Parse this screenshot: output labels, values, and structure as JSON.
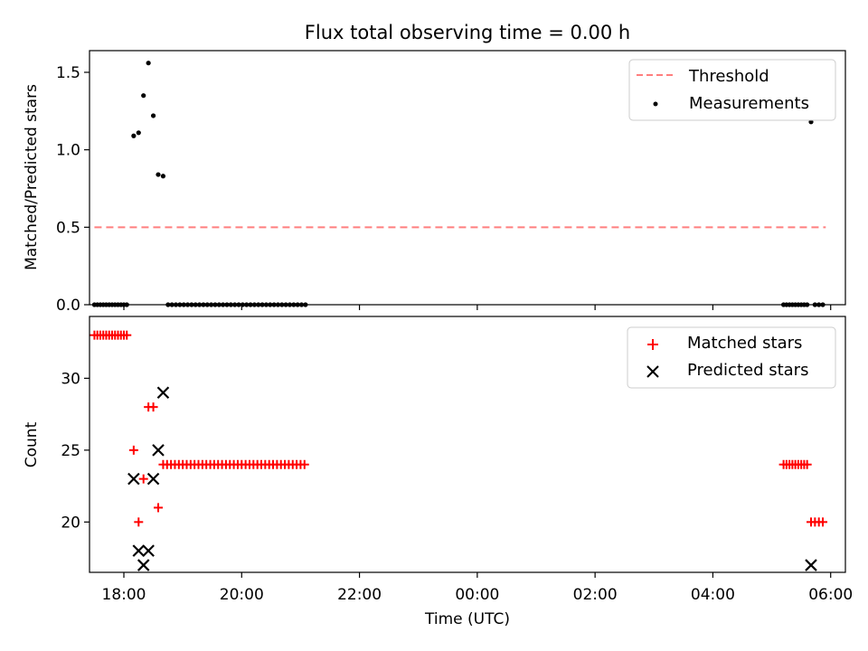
{
  "figure": {
    "title": "Flux total observing time = 0.00 h",
    "x_time_format": "HH:MM"
  },
  "chart_data": [
    {
      "type": "scatter",
      "panel": "top",
      "title": "Flux total observing time = 0.00 h",
      "xlabel": "",
      "ylabel": "Matched/Predicted stars",
      "xlim": [
        "17:25",
        "06:15"
      ],
      "ylim": [
        0,
        1.64
      ],
      "yticks": [
        0.0,
        0.5,
        1.0,
        1.5
      ],
      "ytick_labels": [
        "0.0",
        "0.5",
        "1.0",
        "1.5"
      ],
      "xticks": [
        "18:00",
        "20:00",
        "22:00",
        "00:00",
        "02:00",
        "04:00",
        "06:00"
      ],
      "legend": {
        "position": "top-right",
        "entries": [
          "Threshold",
          "Measurements"
        ]
      },
      "threshold": {
        "name": "Threshold",
        "value": 0.5,
        "x": [
          "17:30",
          "05:55"
        ],
        "style": "dashed",
        "color": "#ff7f7f"
      },
      "series": [
        {
          "name": "Measurements",
          "marker": "dot",
          "color": "#000000",
          "points": [
            [
              "17:30",
              0
            ],
            [
              "17:33",
              0
            ],
            [
              "17:36",
              0
            ],
            [
              "17:39",
              0
            ],
            [
              "17:42",
              0
            ],
            [
              "17:45",
              0
            ],
            [
              "17:48",
              0
            ],
            [
              "17:51",
              0
            ],
            [
              "17:54",
              0
            ],
            [
              "17:57",
              0
            ],
            [
              "18:00",
              0
            ],
            [
              "18:03",
              0
            ],
            [
              "18:10",
              1.09
            ],
            [
              "18:15",
              1.11
            ],
            [
              "18:20",
              1.35
            ],
            [
              "18:25",
              1.56
            ],
            [
              "18:30",
              1.22
            ],
            [
              "18:35",
              0.84
            ],
            [
              "18:40",
              0.83
            ],
            [
              "18:45",
              0
            ],
            [
              "18:49",
              0
            ],
            [
              "18:53",
              0
            ],
            [
              "18:57",
              0
            ],
            [
              "19:01",
              0
            ],
            [
              "19:05",
              0
            ],
            [
              "19:09",
              0
            ],
            [
              "19:13",
              0
            ],
            [
              "19:17",
              0
            ],
            [
              "19:21",
              0
            ],
            [
              "19:25",
              0
            ],
            [
              "19:29",
              0
            ],
            [
              "19:33",
              0
            ],
            [
              "19:37",
              0
            ],
            [
              "19:41",
              0
            ],
            [
              "19:45",
              0
            ],
            [
              "19:49",
              0
            ],
            [
              "19:53",
              0
            ],
            [
              "19:57",
              0
            ],
            [
              "20:01",
              0
            ],
            [
              "20:05",
              0
            ],
            [
              "20:09",
              0
            ],
            [
              "20:13",
              0
            ],
            [
              "20:17",
              0
            ],
            [
              "20:21",
              0
            ],
            [
              "20:25",
              0
            ],
            [
              "20:29",
              0
            ],
            [
              "20:33",
              0
            ],
            [
              "20:37",
              0
            ],
            [
              "20:41",
              0
            ],
            [
              "20:45",
              0
            ],
            [
              "20:49",
              0
            ],
            [
              "20:53",
              0
            ],
            [
              "20:57",
              0
            ],
            [
              "21:01",
              0
            ],
            [
              "21:05",
              0
            ],
            [
              "05:12",
              0
            ],
            [
              "05:15",
              0
            ],
            [
              "05:18",
              0
            ],
            [
              "05:21",
              0
            ],
            [
              "05:24",
              0
            ],
            [
              "05:27",
              0
            ],
            [
              "05:30",
              0
            ],
            [
              "05:33",
              0
            ],
            [
              "05:36",
              0
            ],
            [
              "05:40",
              1.18
            ],
            [
              "05:44",
              0
            ],
            [
              "05:48",
              0
            ],
            [
              "05:52",
              0
            ]
          ]
        }
      ]
    },
    {
      "type": "scatter",
      "panel": "bottom",
      "title": "",
      "xlabel": "Time (UTC)",
      "ylabel": "Count",
      "xlim": [
        "17:25",
        "06:15"
      ],
      "ylim": [
        16.5,
        34.3
      ],
      "yticks": [
        20,
        25,
        30
      ],
      "ytick_labels": [
        "20",
        "25",
        "30"
      ],
      "xticks": [
        "18:00",
        "20:00",
        "22:00",
        "00:00",
        "02:00",
        "04:00",
        "06:00"
      ],
      "xtick_labels": [
        "18:00",
        "20:00",
        "22:00",
        "00:00",
        "02:00",
        "04:00",
        "06:00"
      ],
      "legend": {
        "position": "top-right",
        "entries": [
          "Matched stars",
          "Predicted stars"
        ]
      },
      "series": [
        {
          "name": "Matched stars",
          "marker": "plus",
          "color": "#ff0000",
          "points": [
            [
              "17:30",
              33
            ],
            [
              "17:33",
              33
            ],
            [
              "17:36",
              33
            ],
            [
              "17:39",
              33
            ],
            [
              "17:42",
              33
            ],
            [
              "17:45",
              33
            ],
            [
              "17:48",
              33
            ],
            [
              "17:51",
              33
            ],
            [
              "17:54",
              33
            ],
            [
              "17:57",
              33
            ],
            [
              "18:00",
              33
            ],
            [
              "18:03",
              33
            ],
            [
              "18:10",
              25
            ],
            [
              "18:15",
              20
            ],
            [
              "18:20",
              23
            ],
            [
              "18:25",
              28
            ],
            [
              "18:30",
              28
            ],
            [
              "18:35",
              21
            ],
            [
              "18:40",
              24
            ],
            [
              "18:44",
              24
            ],
            [
              "18:48",
              24
            ],
            [
              "18:52",
              24
            ],
            [
              "18:56",
              24
            ],
            [
              "19:00",
              24
            ],
            [
              "19:04",
              24
            ],
            [
              "19:08",
              24
            ],
            [
              "19:12",
              24
            ],
            [
              "19:16",
              24
            ],
            [
              "19:20",
              24
            ],
            [
              "19:24",
              24
            ],
            [
              "19:28",
              24
            ],
            [
              "19:32",
              24
            ],
            [
              "19:36",
              24
            ],
            [
              "19:40",
              24
            ],
            [
              "19:44",
              24
            ],
            [
              "19:48",
              24
            ],
            [
              "19:52",
              24
            ],
            [
              "19:56",
              24
            ],
            [
              "20:00",
              24
            ],
            [
              "20:04",
              24
            ],
            [
              "20:08",
              24
            ],
            [
              "20:12",
              24
            ],
            [
              "20:16",
              24
            ],
            [
              "20:20",
              24
            ],
            [
              "20:24",
              24
            ],
            [
              "20:28",
              24
            ],
            [
              "20:32",
              24
            ],
            [
              "20:36",
              24
            ],
            [
              "20:40",
              24
            ],
            [
              "20:44",
              24
            ],
            [
              "20:48",
              24
            ],
            [
              "20:52",
              24
            ],
            [
              "20:56",
              24
            ],
            [
              "21:00",
              24
            ],
            [
              "21:04",
              24
            ],
            [
              "05:12",
              24
            ],
            [
              "05:15",
              24
            ],
            [
              "05:18",
              24
            ],
            [
              "05:21",
              24
            ],
            [
              "05:24",
              24
            ],
            [
              "05:27",
              24
            ],
            [
              "05:30",
              24
            ],
            [
              "05:33",
              24
            ],
            [
              "05:36",
              24
            ],
            [
              "05:40",
              20
            ],
            [
              "05:44",
              20
            ],
            [
              "05:48",
              20
            ],
            [
              "05:52",
              20
            ]
          ]
        },
        {
          "name": "Predicted stars",
          "marker": "x",
          "color": "#000000",
          "points": [
            [
              "18:10",
              23
            ],
            [
              "18:15",
              18
            ],
            [
              "18:20",
              17
            ],
            [
              "18:25",
              18
            ],
            [
              "18:30",
              23
            ],
            [
              "18:35",
              25
            ],
            [
              "18:40",
              29
            ],
            [
              "05:40",
              17
            ]
          ]
        }
      ]
    }
  ]
}
